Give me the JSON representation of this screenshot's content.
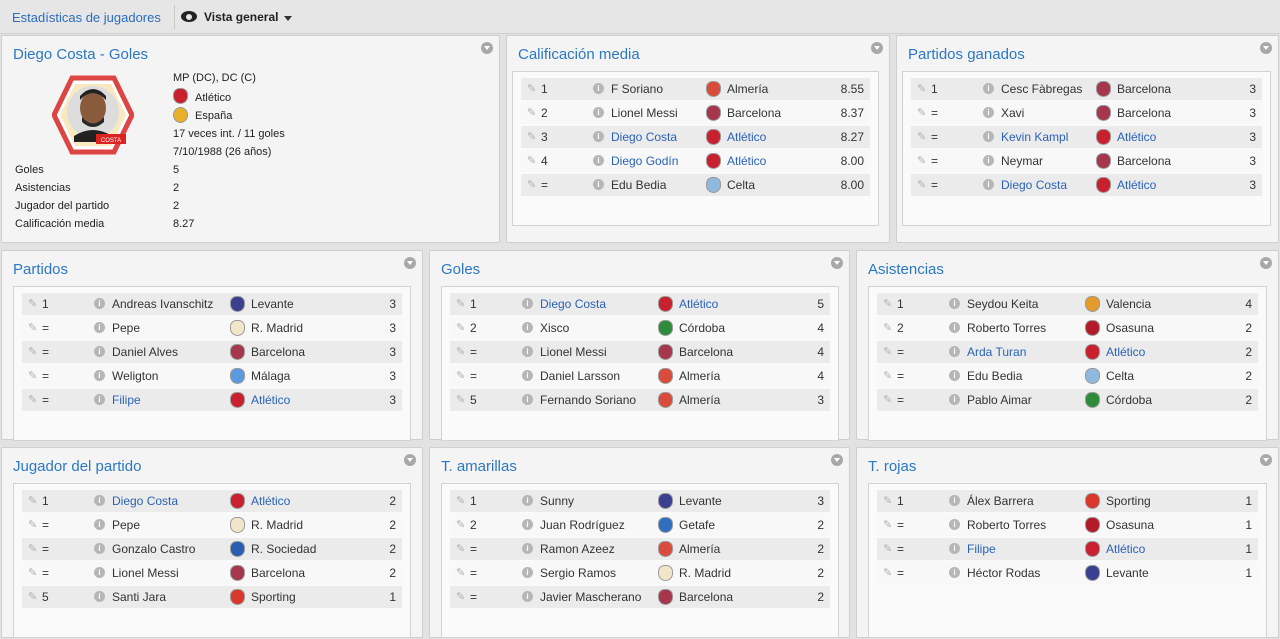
{
  "header": {
    "breadcrumb": "Estadísticas de jugadores",
    "view_label": "Vista general",
    "view_icon": "eye-icon"
  },
  "colors": {
    "accent": "#2b78c4",
    "link": "#2a62b8"
  },
  "player": {
    "title": "Diego Costa - Goles",
    "position": "MP (DC), DC (C)",
    "club": "Atlético",
    "nation": "España",
    "caps": "17 veces int. / 11 goles",
    "dob": "7/10/1988 (26 años)",
    "badge_name": "COSTA",
    "stats": [
      {
        "label": "Goles",
        "value": "5"
      },
      {
        "label": "Asistencias",
        "value": "2"
      },
      {
        "label": "Jugador del partido",
        "value": "2"
      },
      {
        "label": "Calificación media",
        "value": "8.27"
      }
    ]
  },
  "panels": [
    {
      "title": "Calificación media",
      "rows": [
        {
          "pos": "1",
          "name": "F Soriano",
          "club": "Almería",
          "value": "8.55",
          "link": false,
          "crest": "#d94b3a"
        },
        {
          "pos": "2",
          "name": "Lionel Messi",
          "club": "Barcelona",
          "value": "8.37",
          "link": false,
          "crest": "#a5364c"
        },
        {
          "pos": "3",
          "name": "Diego Costa",
          "club": "Atlético",
          "value": "8.27",
          "link": true,
          "crest": "#c8202f"
        },
        {
          "pos": "4",
          "name": "Diego Godín",
          "club": "Atlético",
          "value": "8.00",
          "link": true,
          "crest": "#c8202f"
        },
        {
          "pos": "=",
          "name": "Edu Bedia",
          "club": "Celta",
          "value": "8.00",
          "link": false,
          "crest": "#8fb9dd"
        }
      ]
    },
    {
      "title": "Partidos ganados",
      "rows": [
        {
          "pos": "1",
          "name": "Cesc Fàbregas",
          "club": "Barcelona",
          "value": "3",
          "link": false,
          "crest": "#a5364c"
        },
        {
          "pos": "=",
          "name": "Xavi",
          "club": "Barcelona",
          "value": "3",
          "link": false,
          "crest": "#a5364c"
        },
        {
          "pos": "=",
          "name": "Kevin Kampl",
          "club": "Atlético",
          "value": "3",
          "link": true,
          "crest": "#c8202f"
        },
        {
          "pos": "=",
          "name": "Neymar",
          "club": "Barcelona",
          "value": "3",
          "link": false,
          "crest": "#a5364c"
        },
        {
          "pos": "=",
          "name": "Diego Costa",
          "club": "Atlético",
          "value": "3",
          "link": true,
          "crest": "#c8202f"
        }
      ]
    },
    {
      "title": "Partidos",
      "rows": [
        {
          "pos": "1",
          "name": "Andreas Ivanschitz",
          "club": "Levante",
          "value": "3",
          "link": false,
          "crest": "#3a3f8f"
        },
        {
          "pos": "=",
          "name": "Pepe",
          "club": "R. Madrid",
          "value": "3",
          "link": false,
          "crest": "#f1e7c8"
        },
        {
          "pos": "=",
          "name": "Daniel Alves",
          "club": "Barcelona",
          "value": "3",
          "link": false,
          "crest": "#a5364c"
        },
        {
          "pos": "=",
          "name": "Weligton",
          "club": "Málaga",
          "value": "3",
          "link": false,
          "crest": "#5a9be0"
        },
        {
          "pos": "=",
          "name": "Filipe",
          "club": "Atlético",
          "value": "3",
          "link": true,
          "crest": "#c8202f"
        }
      ]
    },
    {
      "title": "Goles",
      "rows": [
        {
          "pos": "1",
          "name": "Diego Costa",
          "club": "Atlético",
          "value": "5",
          "link": true,
          "crest": "#c8202f"
        },
        {
          "pos": "2",
          "name": "Xisco",
          "club": "Córdoba",
          "value": "4",
          "link": false,
          "crest": "#2e8b3a"
        },
        {
          "pos": "=",
          "name": "Lionel Messi",
          "club": "Barcelona",
          "value": "4",
          "link": false,
          "crest": "#a5364c"
        },
        {
          "pos": "=",
          "name": "Daniel Larsson",
          "club": "Almería",
          "value": "4",
          "link": false,
          "crest": "#d94b3a"
        },
        {
          "pos": "5",
          "name": "Fernando Soriano",
          "club": "Almería",
          "value": "3",
          "link": false,
          "crest": "#d94b3a"
        }
      ]
    },
    {
      "title": "Asistencias",
      "rows": [
        {
          "pos": "1",
          "name": "Seydou Keita",
          "club": "Valencia",
          "value": "4",
          "link": false,
          "crest": "#e59a2c"
        },
        {
          "pos": "2",
          "name": "Roberto Torres",
          "club": "Osasuna",
          "value": "2",
          "link": false,
          "crest": "#b31b2a"
        },
        {
          "pos": "=",
          "name": "Arda Turan",
          "club": "Atlético",
          "value": "2",
          "link": true,
          "crest": "#c8202f"
        },
        {
          "pos": "=",
          "name": "Edu Bedia",
          "club": "Celta",
          "value": "2",
          "link": false,
          "crest": "#8fb9dd"
        },
        {
          "pos": "=",
          "name": "Pablo Aimar",
          "club": "Córdoba",
          "value": "2",
          "link": false,
          "crest": "#2e8b3a"
        }
      ]
    },
    {
      "title": "Jugador del partido",
      "rows": [
        {
          "pos": "1",
          "name": "Diego Costa",
          "club": "Atlético",
          "value": "2",
          "link": true,
          "crest": "#c8202f"
        },
        {
          "pos": "=",
          "name": "Pepe",
          "club": "R. Madrid",
          "value": "2",
          "link": false,
          "crest": "#f1e7c8"
        },
        {
          "pos": "=",
          "name": "Gonzalo Castro",
          "club": "R. Sociedad",
          "value": "2",
          "link": false,
          "crest": "#2a5db0"
        },
        {
          "pos": "=",
          "name": "Lionel Messi",
          "club": "Barcelona",
          "value": "2",
          "link": false,
          "crest": "#a5364c"
        },
        {
          "pos": "5",
          "name": "Santi Jara",
          "club": "Sporting",
          "value": "1",
          "link": false,
          "crest": "#d9362c"
        }
      ]
    },
    {
      "title": "T. amarillas",
      "rows": [
        {
          "pos": "1",
          "name": "Sunny",
          "club": "Levante",
          "value": "3",
          "link": false,
          "crest": "#3a3f8f"
        },
        {
          "pos": "2",
          "name": "Juan Rodríguez",
          "club": "Getafe",
          "value": "2",
          "link": false,
          "crest": "#2f6fc0"
        },
        {
          "pos": "=",
          "name": "Ramon Azeez",
          "club": "Almería",
          "value": "2",
          "link": false,
          "crest": "#d94b3a"
        },
        {
          "pos": "=",
          "name": "Sergio Ramos",
          "club": "R. Madrid",
          "value": "2",
          "link": false,
          "crest": "#f1e7c8"
        },
        {
          "pos": "=",
          "name": "Javier Mascherano",
          "club": "Barcelona",
          "value": "2",
          "link": false,
          "crest": "#a5364c"
        }
      ]
    },
    {
      "title": "T. rojas",
      "rows": [
        {
          "pos": "1",
          "name": "Álex Barrera",
          "club": "Sporting",
          "value": "1",
          "link": false,
          "crest": "#d9362c"
        },
        {
          "pos": "=",
          "name": "Roberto Torres",
          "club": "Osasuna",
          "value": "1",
          "link": false,
          "crest": "#b31b2a"
        },
        {
          "pos": "=",
          "name": "Filipe",
          "club": "Atlético",
          "value": "1",
          "link": true,
          "crest": "#c8202f"
        },
        {
          "pos": "=",
          "name": "Héctor Rodas",
          "club": "Levante",
          "value": "1",
          "link": false,
          "crest": "#3a3f8f"
        }
      ]
    }
  ]
}
